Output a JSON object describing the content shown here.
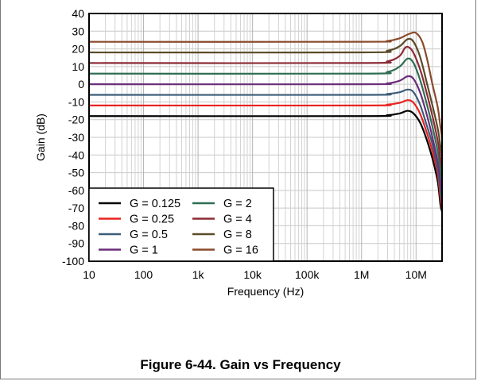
{
  "caption": "Figure 6-44. Gain vs Frequency",
  "chart_data": {
    "type": "line",
    "title": "",
    "xlabel": "Frequency (Hz)",
    "ylabel": "Gain (dB)",
    "xscale": "log",
    "xlim": [
      10,
      30000000
    ],
    "ylim": [
      -100,
      40
    ],
    "x_ticks": [
      {
        "value": 10,
        "label": "10"
      },
      {
        "value": 100,
        "label": "100"
      },
      {
        "value": 1000,
        "label": "1k"
      },
      {
        "value": 10000,
        "label": "10k"
      },
      {
        "value": 100000,
        "label": "100k"
      },
      {
        "value": 1000000,
        "label": "1M"
      },
      {
        "value": 10000000,
        "label": "10M"
      }
    ],
    "y_ticks": [
      40,
      30,
      20,
      10,
      0,
      -10,
      -20,
      -30,
      -40,
      -50,
      -60,
      -70,
      -80,
      -90,
      -100
    ],
    "grid": true,
    "legend_position": "bottom-left",
    "legend_columns": 2,
    "series": [
      {
        "name": "G = 0.125",
        "color": "#000000",
        "x": [
          10,
          1000000,
          3000000,
          5000000,
          7000000,
          9000000,
          12000000,
          16000000,
          20000000,
          25000000,
          28000000,
          30000000
        ],
        "y": [
          -18,
          -18,
          -17.5,
          -16.5,
          -15,
          -16.5,
          -22,
          -32,
          -42,
          -55,
          -68,
          -72
        ]
      },
      {
        "name": "G = 0.25",
        "color": "#e8231f",
        "x": [
          10,
          1000000,
          3000000,
          5000000,
          7000000,
          9000000,
          12000000,
          16000000,
          20000000,
          25000000,
          28000000,
          30000000
        ],
        "y": [
          -12,
          -12,
          -11.5,
          -10.5,
          -9,
          -10.5,
          -17,
          -28,
          -38,
          -51,
          -64,
          -70
        ]
      },
      {
        "name": "G = 0.5",
        "color": "#3b5c78",
        "x": [
          10,
          1000000,
          3000000,
          5000000,
          7000000,
          9000000,
          12000000,
          16000000,
          20000000,
          25000000,
          28000000,
          30000000
        ],
        "y": [
          -6,
          -6,
          -5.5,
          -4.5,
          -3,
          -4.5,
          -12,
          -24,
          -34,
          -48,
          -60,
          -68
        ]
      },
      {
        "name": "G = 1",
        "color": "#6b2d7a",
        "x": [
          10,
          1000000,
          3000000,
          5000000,
          7000000,
          9000000,
          12000000,
          16000000,
          20000000,
          25000000,
          28000000,
          30000000
        ],
        "y": [
          0,
          0,
          0.5,
          2,
          4.5,
          3,
          -5,
          -18,
          -30,
          -44,
          -55,
          -62
        ]
      },
      {
        "name": "G = 2",
        "color": "#2e6e52",
        "x": [
          10,
          1000000,
          3000000,
          5000000,
          7000000,
          9000000,
          12000000,
          16000000,
          20000000,
          25000000,
          28000000,
          30000000
        ],
        "y": [
          6,
          6,
          7,
          10,
          14.5,
          12,
          2,
          -12,
          -24,
          -38,
          -48,
          -55
        ]
      },
      {
        "name": "G = 4",
        "color": "#8b2a35",
        "x": [
          10,
          1000000,
          3000000,
          5000000,
          6500000,
          8500000,
          12000000,
          16000000,
          20000000,
          25000000,
          28000000,
          30000000
        ],
        "y": [
          12,
          12,
          13,
          16,
          21,
          19,
          8,
          -6,
          -18,
          -32,
          -42,
          -48
        ]
      },
      {
        "name": "G = 8",
        "color": "#5a4a28",
        "x": [
          10,
          1000000,
          3000000,
          5000000,
          7000000,
          9000000,
          12000000,
          16000000,
          20000000,
          25000000,
          28000000,
          30000000
        ],
        "y": [
          18,
          18,
          19,
          21.5,
          25.5,
          24,
          15,
          0,
          -12,
          -25,
          -35,
          -41
        ]
      },
      {
        "name": "G = 16",
        "color": "#8a4a2a",
        "x": [
          10,
          1000000,
          3000000,
          5000000,
          7500000,
          10000000,
          13000000,
          16000000,
          20000000,
          25000000,
          28000000,
          30000000
        ],
        "y": [
          24,
          24,
          24.5,
          26,
          28.5,
          29,
          24,
          14,
          0,
          -13,
          -24,
          -30
        ]
      }
    ]
  }
}
